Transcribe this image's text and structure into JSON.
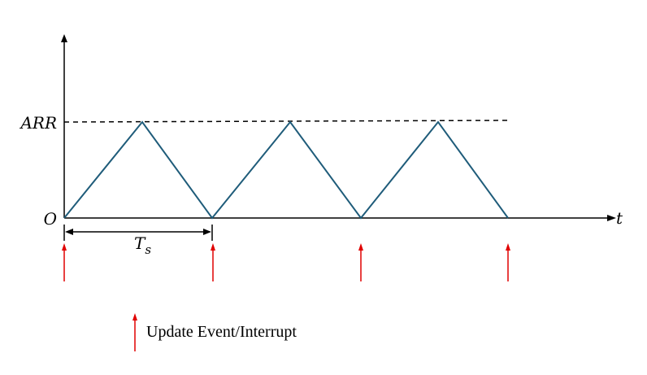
{
  "labels": {
    "arr": "ARR",
    "origin": "O",
    "time_axis": "t",
    "period_main": "T",
    "period_sub": "s"
  },
  "legend": {
    "text": "Update Event/Interrupt"
  },
  "waveform": {
    "type": "triangle",
    "peak_label": "ARR",
    "periods": 3
  },
  "colors": {
    "waveform": "#1f5c7a",
    "event_arrow": "#e00000",
    "axis": "#000000"
  }
}
